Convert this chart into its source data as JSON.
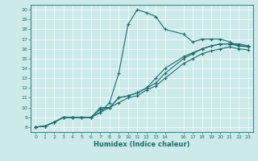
{
  "xlabel": "Humidex (Indice chaleur)",
  "bg_color": "#cceaea",
  "line_color": "#1a6b6b",
  "grid_color": "#b8d8d8",
  "xlim": [
    -0.5,
    23.5
  ],
  "ylim": [
    7.5,
    20.5
  ],
  "xticks": [
    0,
    1,
    2,
    3,
    4,
    5,
    6,
    7,
    8,
    9,
    10,
    11,
    12,
    13,
    14,
    16,
    17,
    18,
    19,
    20,
    21,
    22,
    23
  ],
  "yticks": [
    8,
    9,
    10,
    11,
    12,
    13,
    14,
    15,
    16,
    17,
    18,
    19,
    20
  ],
  "series": [
    {
      "x": [
        0,
        1,
        2,
        3,
        4,
        5,
        6,
        7,
        8,
        9,
        10,
        11,
        12,
        13,
        14,
        16,
        17,
        18,
        19,
        20,
        21,
        22,
        23
      ],
      "y": [
        8,
        8.1,
        8.5,
        9.0,
        9.0,
        9.0,
        9.0,
        9.5,
        10.5,
        13.5,
        18.5,
        20.0,
        19.7,
        19.3,
        18.0,
        17.5,
        16.7,
        17.0,
        17.0,
        17.0,
        16.7,
        16.3,
        16.3
      ]
    },
    {
      "x": [
        0,
        1,
        2,
        3,
        4,
        5,
        6,
        7,
        8,
        9,
        10,
        11,
        12,
        13,
        14,
        16,
        17,
        18,
        19,
        20,
        21,
        22,
        23
      ],
      "y": [
        8,
        8.1,
        8.5,
        9.0,
        9.0,
        9.0,
        9.0,
        9.5,
        10.0,
        11.0,
        11.2,
        11.5,
        12.0,
        13.0,
        14.0,
        15.2,
        15.6,
        16.0,
        16.3,
        16.5,
        16.5,
        16.5,
        16.3
      ]
    },
    {
      "x": [
        0,
        1,
        2,
        3,
        4,
        5,
        6,
        7,
        8,
        9,
        10,
        11,
        12,
        13,
        14,
        16,
        17,
        18,
        19,
        20,
        21,
        22,
        23
      ],
      "y": [
        8,
        8.1,
        8.5,
        9.0,
        9.0,
        9.0,
        9.0,
        10.0,
        10.0,
        11.0,
        11.2,
        11.5,
        12.0,
        12.5,
        13.5,
        15.0,
        15.5,
        16.0,
        16.3,
        16.5,
        16.5,
        16.3,
        16.2
      ]
    },
    {
      "x": [
        0,
        1,
        2,
        3,
        4,
        5,
        6,
        7,
        8,
        9,
        10,
        11,
        12,
        13,
        14,
        16,
        17,
        18,
        19,
        20,
        21,
        22,
        23
      ],
      "y": [
        8,
        8.1,
        8.5,
        9.0,
        9.0,
        9.0,
        9.0,
        9.8,
        10.0,
        10.5,
        11.0,
        11.2,
        11.8,
        12.2,
        13.0,
        14.5,
        15.0,
        15.5,
        15.8,
        16.0,
        16.2,
        16.0,
        15.9
      ]
    }
  ]
}
